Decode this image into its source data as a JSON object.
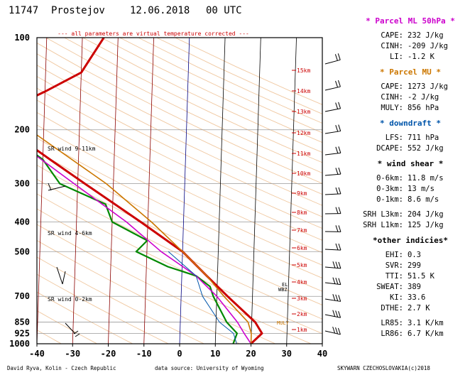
{
  "header": {
    "station_id": "11747",
    "station_name": "Prostejov",
    "date": "12.06.2018",
    "time": "00 UTC",
    "note": "--- all parameters are virtual temperature corrected ---"
  },
  "footer": {
    "left": "David Ryva, Kolin - Czech Republic",
    "center": "data source: University of Wyoming",
    "right": "SKYWARN CZECHOSLOVAKIA(c)2018"
  },
  "colors": {
    "parcel_ml": "#cc00cc",
    "parcel_mu": "#cc7700",
    "downdraft": "#0055aa",
    "temperature": "#cc0000",
    "dewpoint": "#008800",
    "isotherm_zero": "#000080",
    "dry_adiabat": "#f0c8a0",
    "grid": "#999999"
  },
  "chart_data": {
    "type": "line",
    "title": "",
    "xlabel": "",
    "ylabel": "",
    "x_ticks": [
      -40,
      -30,
      -20,
      -10,
      0,
      10,
      20,
      30,
      40
    ],
    "pressure_levels": [
      100,
      200,
      300,
      400,
      500,
      700,
      850,
      925,
      1000
    ],
    "height_labels": [
      "15km",
      "14km",
      "13km",
      "12km",
      "11km",
      "10km",
      "9km",
      "8km",
      "7km",
      "6km",
      "5km",
      "4km",
      "3km",
      "2km",
      "1km"
    ],
    "sr_wind_labels": [
      "SR wind 9-11km",
      "SR wind 4-6km",
      "SR wind 0-2km"
    ],
    "level_markers": [
      "EL",
      "WBZ",
      "MULY"
    ],
    "series": [
      {
        "values": [
          [
            1000,
            20
          ],
          [
            925,
            23
          ],
          [
            850,
            21
          ],
          [
            700,
            13
          ],
          [
            600,
            7
          ],
          [
            500,
            0
          ],
          [
            400,
            -12
          ],
          [
            300,
            -28
          ],
          [
            250,
            -38
          ],
          [
            200,
            -50
          ],
          [
            180,
            -54
          ],
          [
            170,
            -52
          ],
          [
            160,
            -45
          ],
          [
            150,
            -40
          ],
          [
            130,
            -30
          ],
          [
            100,
            -24
          ]
        ]
      },
      {
        "values": [
          [
            1000,
            15
          ],
          [
            925,
            16
          ],
          [
            850,
            13
          ],
          [
            700,
            9
          ],
          [
            650,
            8
          ],
          [
            600,
            4
          ],
          [
            560,
            -4
          ],
          [
            500,
            -13
          ],
          [
            460,
            -10
          ],
          [
            400,
            -20
          ],
          [
            350,
            -22
          ],
          [
            300,
            -35
          ],
          [
            250,
            -40
          ],
          [
            200,
            -52
          ],
          [
            180,
            -53
          ],
          [
            160,
            -52
          ],
          [
            150,
            -58
          ],
          [
            140,
            -60
          ],
          [
            100,
            -55
          ]
        ]
      },
      {
        "values": [
          [
            1000,
            20
          ],
          [
            925,
            18
          ],
          [
            850,
            16
          ],
          [
            700,
            10
          ],
          [
            600,
            4
          ],
          [
            500,
            -6
          ],
          [
            400,
            -16
          ],
          [
            300,
            -31
          ],
          [
            200,
            -52
          ],
          [
            150,
            -60
          ],
          [
            100,
            -72
          ]
        ]
      },
      {
        "values": [
          [
            1000,
            20
          ],
          [
            925,
            20
          ],
          [
            850,
            19
          ],
          [
            700,
            12
          ],
          [
            600,
            7
          ],
          [
            500,
            0
          ],
          [
            400,
            -9
          ],
          [
            300,
            -22
          ],
          [
            200,
            -44
          ],
          [
            150,
            -58
          ],
          [
            100,
            -68
          ]
        ]
      },
      {
        "values": [
          [
            1000,
            16
          ],
          [
            925,
            15
          ],
          [
            850,
            11
          ],
          [
            700,
            6
          ],
          [
            600,
            4
          ],
          [
            500,
            -4
          ]
        ]
      }
    ]
  },
  "panel": {
    "ml": {
      "title": "* Parcel ML 50hPa *",
      "rows": [
        [
          "CAPE:",
          "232 J/kg"
        ],
        [
          "CINH:",
          "-209 J/kg"
        ],
        [
          "LI:",
          "-1.2 K"
        ]
      ]
    },
    "mu": {
      "title": "* Parcel MU *",
      "rows": [
        [
          "CAPE:",
          "1273 J/kg"
        ],
        [
          "CINH:",
          "-2 J/kg"
        ],
        [
          "MULY:",
          "856 hPa"
        ]
      ]
    },
    "dd": {
      "title": "* downdraft *",
      "rows": [
        [
          "LFS:",
          "711 hPa"
        ],
        [
          "DCAPE:",
          "552 J/kg"
        ]
      ]
    },
    "ws": {
      "title": "* wind shear *",
      "rows": [
        [
          "0-6km:",
          "11.8 m/s"
        ],
        [
          "0-3km:",
          "13 m/s"
        ],
        [
          "0-1km:",
          "8.6 m/s"
        ]
      ]
    },
    "srh": {
      "rows": [
        [
          "SRH L3km:",
          "204 J/kg"
        ],
        [
          "SRH L1km:",
          "125 J/kg"
        ]
      ]
    },
    "ot": {
      "title": "*other indicies*",
      "rows": [
        [
          "EHI:",
          "0.3"
        ],
        [
          "SVR:",
          "299"
        ],
        [
          "TTI:",
          "51.5 K"
        ],
        [
          "SWEAT:",
          "389"
        ],
        [
          "KI:",
          "33.6"
        ],
        [
          "DTHE:",
          "2.7 K"
        ]
      ]
    },
    "lr": {
      "rows": [
        [
          "LR85:",
          "3.1 K/km"
        ],
        [
          "LR86:",
          "6.7 K/km"
        ]
      ]
    }
  }
}
